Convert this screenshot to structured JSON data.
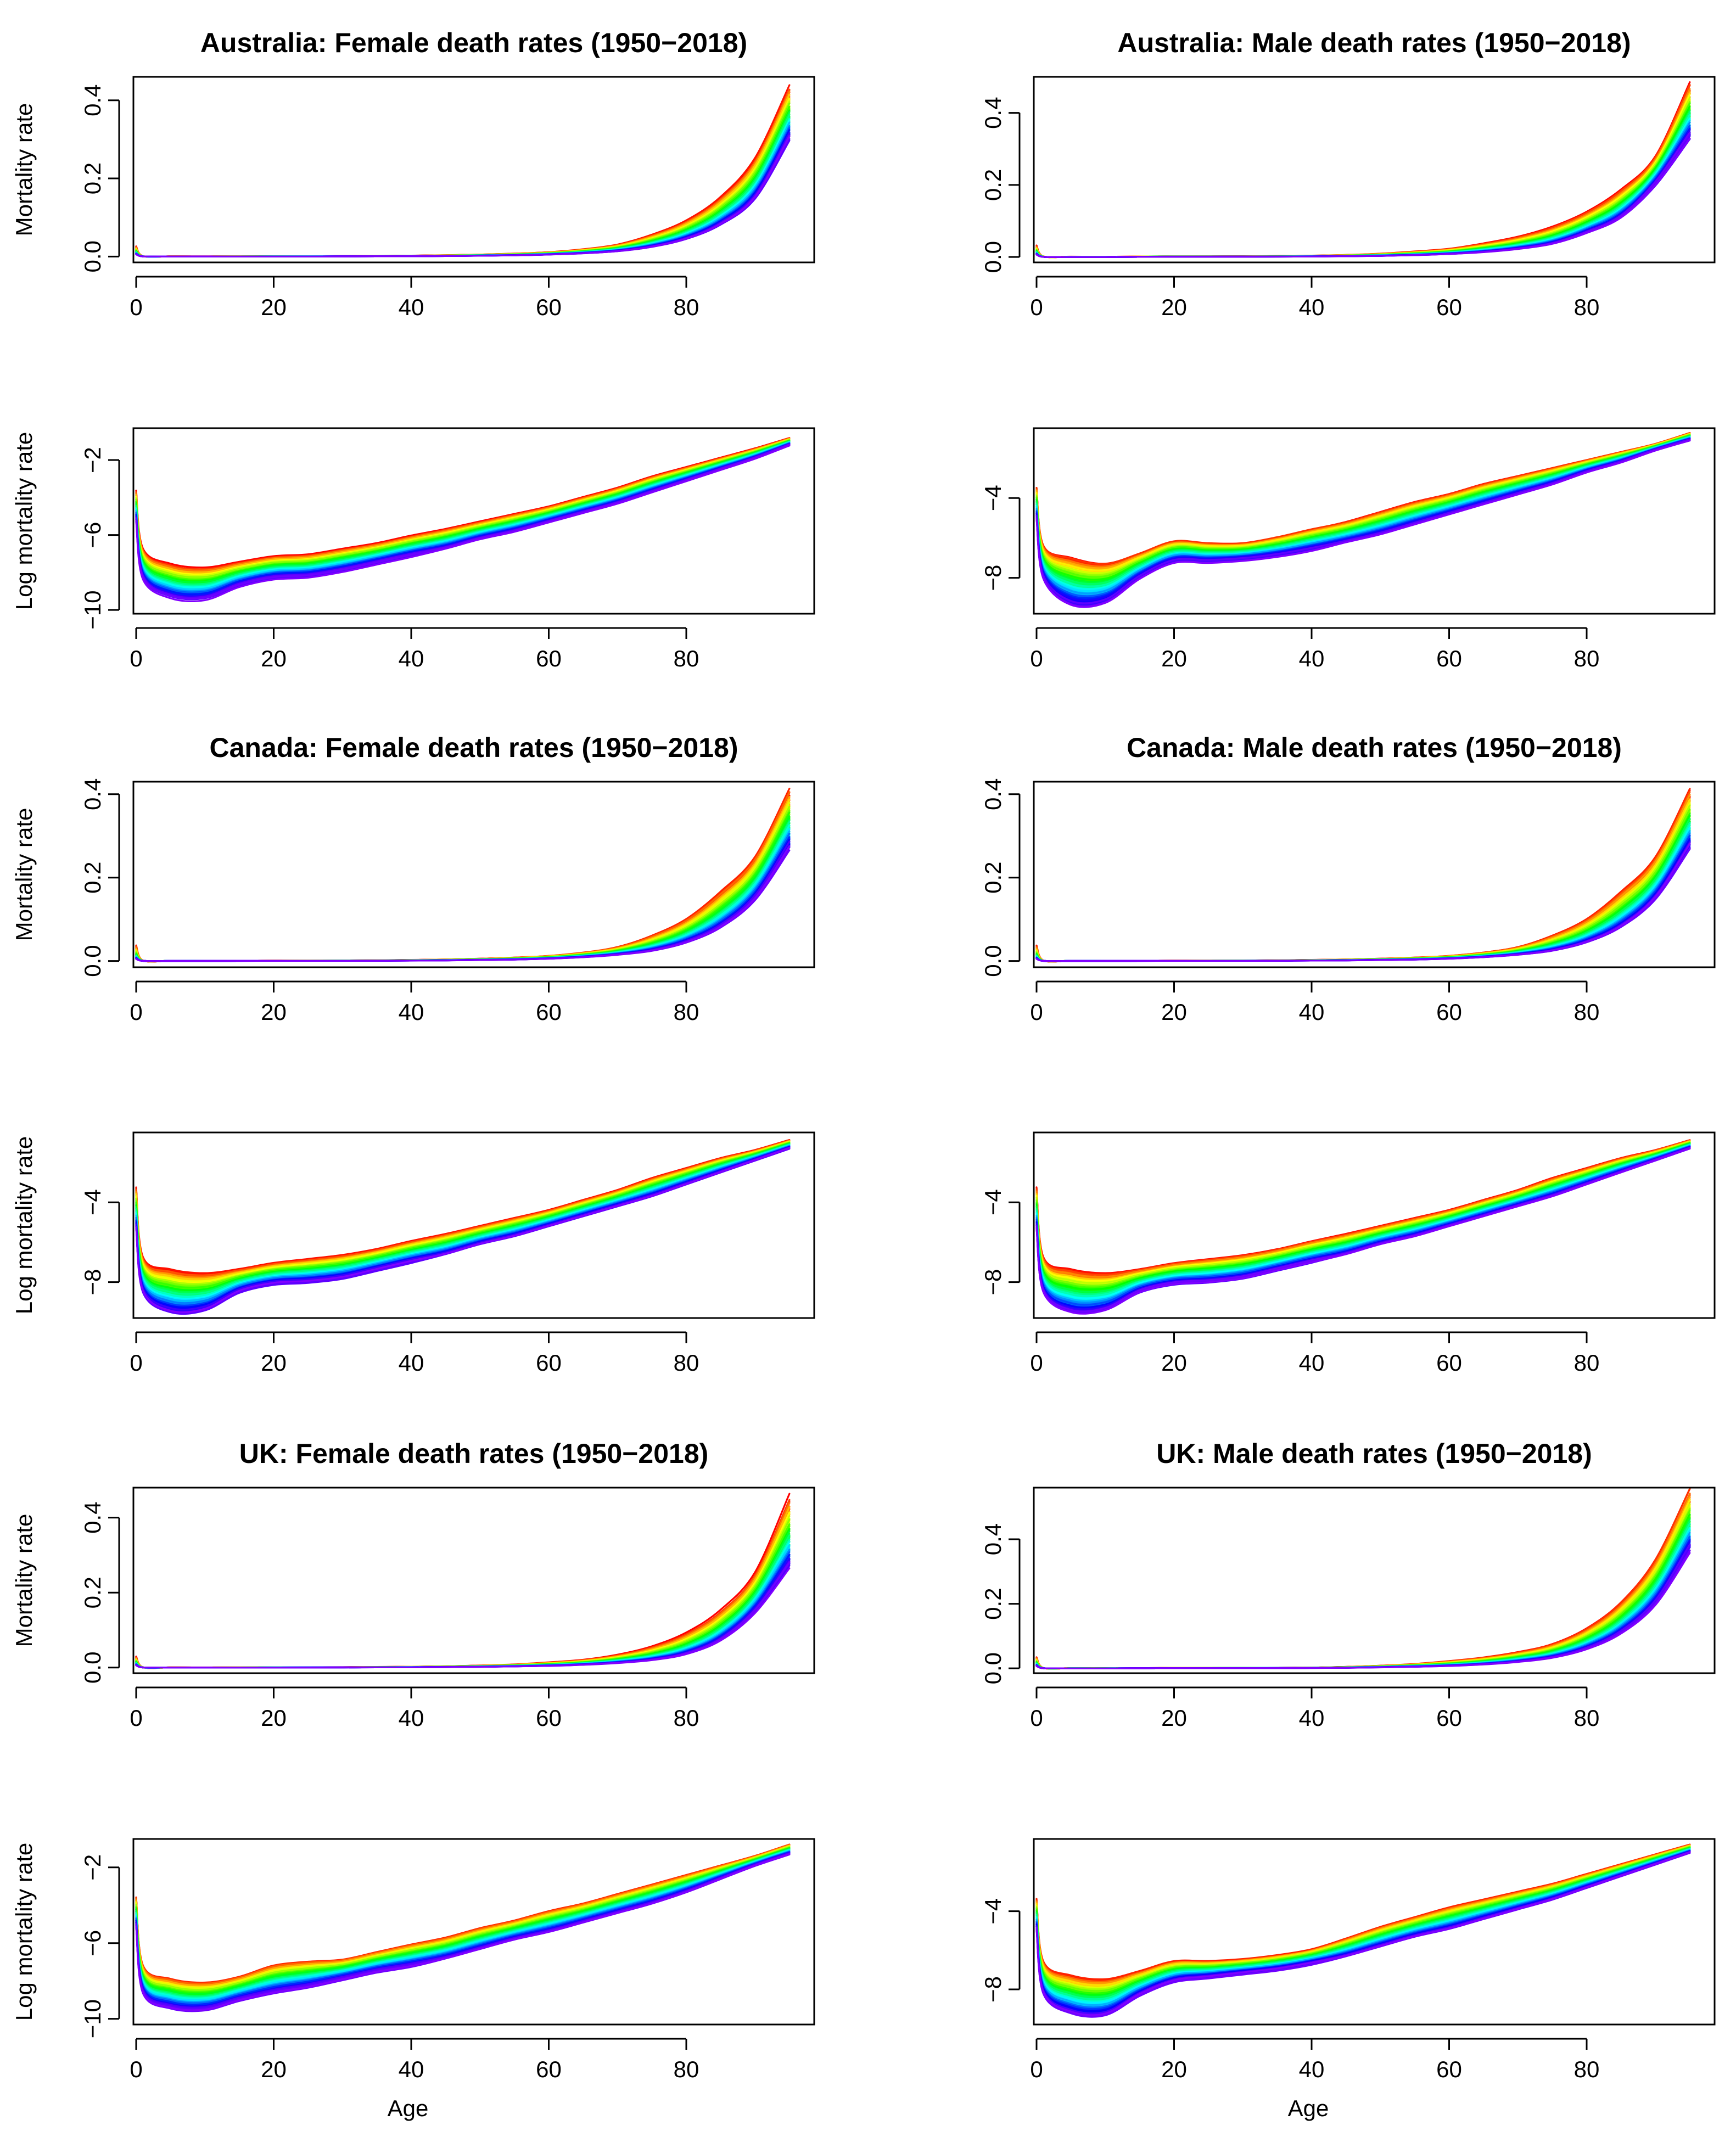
{
  "figure": {
    "x_axis_label": "Age"
  },
  "rainbow_colors": [
    "#ff0000",
    "#ff8000",
    "#ffff00",
    "#80ff00",
    "#00ff00",
    "#00ff80",
    "#00ffff",
    "#0080ff",
    "#0000ff",
    "#8000ff"
  ],
  "chart_data": [
    {
      "type": "line",
      "panel": "Australia Female mortality",
      "title": "Australia: Female death rates (1950−2018)",
      "xlabel": "",
      "ylabel": "Mortality rate",
      "xlim": [
        -3,
        98
      ],
      "ylim": [
        -0.015,
        0.46
      ],
      "xticks": [
        0,
        20,
        40,
        60,
        80
      ],
      "xtick_labels": [
        "0",
        "20",
        "40",
        "60",
        "80"
      ],
      "yticks": [
        0,
        0.2,
        0.4
      ],
      "ytick_labels": [
        "0.0",
        "0.2",
        "0.4"
      ],
      "series_count": 69,
      "years": [
        1950,
        2018
      ],
      "log_scale": false,
      "x": [
        0,
        1,
        5,
        10,
        15,
        20,
        25,
        30,
        35,
        40,
        45,
        50,
        55,
        60,
        65,
        70,
        75,
        80,
        85,
        90,
        95
      ],
      "log_rate_first_year": [
        -3.7,
        -6.8,
        -7.6,
        -7.8,
        -7.5,
        -7.2,
        -7.1,
        -6.8,
        -6.5,
        -6.1,
        -5.7,
        -5.3,
        -4.9,
        -4.5,
        -4.0,
        -3.5,
        -2.9,
        -2.4,
        -1.9,
        -1.4,
        -0.85
      ],
      "log_rate_last_year": [
        -5.2,
        -8.3,
        -9.3,
        -9.4,
        -8.7,
        -8.3,
        -8.2,
        -7.9,
        -7.5,
        -7.1,
        -6.7,
        -6.2,
        -5.8,
        -5.3,
        -4.8,
        -4.3,
        -3.7,
        -3.1,
        -2.5,
        -1.9,
        -1.2
      ]
    },
    {
      "type": "line",
      "panel": "Australia Male mortality",
      "title": "Australia: Male death rates (1950−2018)",
      "xlabel": "",
      "ylabel": "",
      "xlim": [
        -3,
        98
      ],
      "ylim": [
        -0.015,
        0.5
      ],
      "xticks": [
        0,
        20,
        40,
        60,
        80
      ],
      "xtick_labels": [
        "0",
        "20",
        "40",
        "60",
        "80"
      ],
      "yticks": [
        0,
        0.2,
        0.4
      ],
      "ytick_labels": [
        "0.0",
        "0.2",
        "0.4"
      ],
      "series_count": 69,
      "years": [
        1950,
        2018
      ],
      "log_scale": false,
      "x": [
        0,
        1,
        5,
        10,
        15,
        20,
        25,
        30,
        35,
        40,
        45,
        50,
        55,
        60,
        65,
        70,
        75,
        80,
        85,
        90,
        95
      ],
      "log_rate_first_year": [
        -3.5,
        -6.4,
        -7.0,
        -7.3,
        -6.8,
        -6.2,
        -6.3,
        -6.3,
        -6.0,
        -5.6,
        -5.2,
        -4.7,
        -4.2,
        -3.8,
        -3.3,
        -2.9,
        -2.5,
        -2.1,
        -1.7,
        -1.3,
        -0.75
      ],
      "log_rate_last_year": [
        -5.0,
        -8.0,
        -9.3,
        -9.2,
        -8.0,
        -7.2,
        -7.2,
        -7.1,
        -6.9,
        -6.6,
        -6.2,
        -5.8,
        -5.3,
        -4.8,
        -4.3,
        -3.8,
        -3.3,
        -2.7,
        -2.2,
        -1.6,
        -1.1
      ]
    },
    {
      "type": "line",
      "panel": "Australia Female log mortality",
      "title": "",
      "xlabel": "",
      "ylabel": "Log mortality rate",
      "xlim": [
        -3,
        98
      ],
      "ylim": [
        -10.2,
        -0.3
      ],
      "xticks": [
        0,
        20,
        40,
        60,
        80
      ],
      "xtick_labels": [
        "0",
        "20",
        "40",
        "60",
        "80"
      ],
      "yticks": [
        -10,
        -6,
        -2
      ],
      "ytick_labels": [
        "−10",
        "−6",
        "−2"
      ],
      "series_count": 69,
      "years": [
        1950,
        2018
      ],
      "log_scale": true,
      "x": [
        0,
        1,
        5,
        10,
        15,
        20,
        25,
        30,
        35,
        40,
        45,
        50,
        55,
        60,
        65,
        70,
        75,
        80,
        85,
        90,
        95
      ],
      "log_rate_first_year": [
        -3.7,
        -6.8,
        -7.6,
        -7.8,
        -7.5,
        -7.2,
        -7.1,
        -6.8,
        -6.5,
        -6.1,
        -5.7,
        -5.3,
        -4.9,
        -4.5,
        -4.0,
        -3.5,
        -2.9,
        -2.4,
        -1.9,
        -1.4,
        -0.85
      ],
      "log_rate_last_year": [
        -5.2,
        -8.3,
        -9.3,
        -9.4,
        -8.7,
        -8.3,
        -8.2,
        -7.9,
        -7.5,
        -7.1,
        -6.7,
        -6.2,
        -5.8,
        -5.3,
        -4.8,
        -4.3,
        -3.7,
        -3.1,
        -2.5,
        -1.9,
        -1.2
      ]
    },
    {
      "type": "line",
      "panel": "Australia Male log mortality",
      "title": "",
      "xlabel": "",
      "ylabel": "",
      "xlim": [
        -3,
        98
      ],
      "ylim": [
        -9.8,
        -0.5
      ],
      "xticks": [
        0,
        20,
        40,
        60,
        80
      ],
      "xtick_labels": [
        "0",
        "20",
        "40",
        "60",
        "80"
      ],
      "yticks": [
        -8,
        -4
      ],
      "ytick_labels": [
        "−8",
        "−4"
      ],
      "series_count": 69,
      "years": [
        1950,
        2018
      ],
      "log_scale": true,
      "x": [
        0,
        1,
        5,
        10,
        15,
        20,
        25,
        30,
        35,
        40,
        45,
        50,
        55,
        60,
        65,
        70,
        75,
        80,
        85,
        90,
        95
      ],
      "log_rate_first_year": [
        -3.5,
        -6.4,
        -7.0,
        -7.3,
        -6.8,
        -6.2,
        -6.3,
        -6.3,
        -6.0,
        -5.6,
        -5.2,
        -4.7,
        -4.2,
        -3.8,
        -3.3,
        -2.9,
        -2.5,
        -2.1,
        -1.7,
        -1.3,
        -0.75
      ],
      "log_rate_last_year": [
        -5.0,
        -8.0,
        -9.3,
        -9.2,
        -8.0,
        -7.2,
        -7.2,
        -7.1,
        -6.9,
        -6.6,
        -6.2,
        -5.8,
        -5.3,
        -4.8,
        -4.3,
        -3.8,
        -3.3,
        -2.7,
        -2.2,
        -1.6,
        -1.1
      ]
    },
    {
      "type": "line",
      "panel": "Canada Female mortality",
      "title": "Canada: Female death rates (1950−2018)",
      "xlabel": "",
      "ylabel": "Mortality rate",
      "xlim": [
        -3,
        98
      ],
      "ylim": [
        -0.015,
        0.43
      ],
      "xticks": [
        0,
        20,
        40,
        60,
        80
      ],
      "xtick_labels": [
        "0",
        "20",
        "40",
        "60",
        "80"
      ],
      "yticks": [
        0,
        0.2,
        0.4
      ],
      "ytick_labels": [
        "0.0",
        "0.2",
        "0.4"
      ],
      "series_count": 69,
      "years": [
        1950,
        2018
      ],
      "log_scale": false,
      "x": [
        0,
        1,
        5,
        10,
        15,
        20,
        25,
        30,
        35,
        40,
        45,
        50,
        55,
        60,
        65,
        70,
        75,
        80,
        85,
        90,
        95
      ],
      "log_rate_first_year": [
        -3.3,
        -6.8,
        -7.4,
        -7.6,
        -7.4,
        -7.1,
        -6.9,
        -6.7,
        -6.4,
        -6.0,
        -5.6,
        -5.2,
        -4.8,
        -4.4,
        -3.9,
        -3.4,
        -2.8,
        -2.3,
        -1.8,
        -1.4,
        -0.9
      ],
      "log_rate_last_year": [
        -5.3,
        -8.5,
        -9.5,
        -9.4,
        -8.5,
        -8.1,
        -8.0,
        -7.8,
        -7.4,
        -7.0,
        -6.6,
        -6.1,
        -5.7,
        -5.2,
        -4.7,
        -4.2,
        -3.7,
        -3.1,
        -2.5,
        -1.9,
        -1.3
      ]
    },
    {
      "type": "line",
      "panel": "Canada Male mortality",
      "title": "Canada: Male death rates (1950−2018)",
      "xlabel": "",
      "ylabel": "",
      "xlim": [
        -3,
        98
      ],
      "ylim": [
        -0.015,
        0.43
      ],
      "xticks": [
        0,
        20,
        40,
        60,
        80
      ],
      "xtick_labels": [
        "0",
        "20",
        "40",
        "60",
        "80"
      ],
      "yticks": [
        0,
        0.2,
        0.4
      ],
      "ytick_labels": [
        "0.0",
        "0.2",
        "0.4"
      ],
      "series_count": 69,
      "years": [
        1950,
        2018
      ],
      "log_scale": false,
      "x": [
        0,
        1,
        5,
        10,
        15,
        20,
        25,
        30,
        35,
        40,
        45,
        50,
        55,
        60,
        65,
        70,
        75,
        80,
        85,
        90,
        95
      ],
      "log_rate_first_year": [
        -3.3,
        -6.8,
        -7.4,
        -7.6,
        -7.4,
        -7.1,
        -6.9,
        -6.7,
        -6.4,
        -6.0,
        -5.6,
        -5.2,
        -4.8,
        -4.4,
        -3.9,
        -3.4,
        -2.8,
        -2.3,
        -1.8,
        -1.4,
        -0.9
      ],
      "log_rate_last_year": [
        -5.3,
        -8.5,
        -9.5,
        -9.4,
        -8.5,
        -8.1,
        -8.0,
        -7.8,
        -7.4,
        -7.0,
        -6.6,
        -6.1,
        -5.7,
        -5.2,
        -4.7,
        -4.2,
        -3.7,
        -3.1,
        -2.5,
        -1.9,
        -1.3
      ]
    },
    {
      "type": "line",
      "panel": "Canada Female log mortality",
      "title": "",
      "xlabel": "",
      "ylabel": "Log mortality rate",
      "xlim": [
        -3,
        98
      ],
      "ylim": [
        -9.8,
        -0.5
      ],
      "xticks": [
        0,
        20,
        40,
        60,
        80
      ],
      "xtick_labels": [
        "0",
        "20",
        "40",
        "60",
        "80"
      ],
      "yticks": [
        -8,
        -4
      ],
      "ytick_labels": [
        "−8",
        "−4"
      ],
      "series_count": 69,
      "years": [
        1950,
        2018
      ],
      "log_scale": true,
      "x": [
        0,
        1,
        5,
        10,
        15,
        20,
        25,
        30,
        35,
        40,
        45,
        50,
        55,
        60,
        65,
        70,
        75,
        80,
        85,
        90,
        95
      ],
      "log_rate_first_year": [
        -3.3,
        -6.8,
        -7.4,
        -7.6,
        -7.4,
        -7.1,
        -6.9,
        -6.7,
        -6.4,
        -6.0,
        -5.6,
        -5.2,
        -4.8,
        -4.4,
        -3.9,
        -3.4,
        -2.8,
        -2.3,
        -1.8,
        -1.4,
        -0.9
      ],
      "log_rate_last_year": [
        -5.3,
        -8.5,
        -9.5,
        -9.4,
        -8.5,
        -8.1,
        -8.0,
        -7.8,
        -7.4,
        -7.0,
        -6.6,
        -6.1,
        -5.7,
        -5.2,
        -4.7,
        -4.2,
        -3.7,
        -3.1,
        -2.5,
        -1.9,
        -1.3
      ]
    },
    {
      "type": "line",
      "panel": "Canada Male log mortality",
      "title": "",
      "xlabel": "",
      "ylabel": "",
      "xlim": [
        -3,
        98
      ],
      "ylim": [
        -9.8,
        -0.5
      ],
      "xticks": [
        0,
        20,
        40,
        60,
        80
      ],
      "xtick_labels": [
        "0",
        "20",
        "40",
        "60",
        "80"
      ],
      "yticks": [
        -8,
        -4
      ],
      "ytick_labels": [
        "−8",
        "−4"
      ],
      "series_count": 69,
      "years": [
        1950,
        2018
      ],
      "log_scale": true,
      "x": [
        0,
        1,
        5,
        10,
        15,
        20,
        25,
        30,
        35,
        40,
        45,
        50,
        55,
        60,
        65,
        70,
        75,
        80,
        85,
        90,
        95
      ],
      "log_rate_first_year": [
        -3.3,
        -6.8,
        -7.4,
        -7.6,
        -7.4,
        -7.1,
        -6.9,
        -6.7,
        -6.4,
        -6.0,
        -5.6,
        -5.2,
        -4.8,
        -4.4,
        -3.9,
        -3.4,
        -2.8,
        -2.3,
        -1.8,
        -1.4,
        -0.9
      ],
      "log_rate_last_year": [
        -5.3,
        -8.5,
        -9.5,
        -9.4,
        -8.5,
        -8.1,
        -8.0,
        -7.8,
        -7.4,
        -7.0,
        -6.6,
        -6.1,
        -5.7,
        -5.2,
        -4.7,
        -4.2,
        -3.7,
        -3.1,
        -2.5,
        -1.9,
        -1.3
      ]
    },
    {
      "type": "line",
      "panel": "UK Female mortality",
      "title": "UK: Female death rates (1950−2018)",
      "xlabel": "",
      "ylabel": "Mortality rate",
      "xlim": [
        -3,
        98
      ],
      "ylim": [
        -0.015,
        0.48
      ],
      "xticks": [
        0,
        20,
        40,
        60,
        80
      ],
      "xtick_labels": [
        "0",
        "20",
        "40",
        "60",
        "80"
      ],
      "yticks": [
        0,
        0.2,
        0.4
      ],
      "ytick_labels": [
        "0.0",
        "0.2",
        "0.4"
      ],
      "series_count": 69,
      "years": [
        1950,
        2018
      ],
      "log_scale": false,
      "x": [
        0,
        1,
        5,
        10,
        15,
        20,
        25,
        30,
        35,
        40,
        45,
        50,
        55,
        60,
        65,
        70,
        75,
        80,
        85,
        90,
        95
      ],
      "log_rate_first_year": [
        -3.6,
        -7.2,
        -7.9,
        -8.1,
        -7.8,
        -7.2,
        -7.0,
        -6.9,
        -6.5,
        -6.1,
        -5.7,
        -5.2,
        -4.8,
        -4.3,
        -3.9,
        -3.4,
        -2.9,
        -2.4,
        -1.9,
        -1.4,
        -0.8
      ],
      "log_rate_last_year": [
        -5.1,
        -8.6,
        -9.4,
        -9.5,
        -9.0,
        -8.6,
        -8.3,
        -7.9,
        -7.5,
        -7.2,
        -6.8,
        -6.3,
        -5.8,
        -5.4,
        -4.9,
        -4.4,
        -3.9,
        -3.3,
        -2.6,
        -1.9,
        -1.3
      ]
    },
    {
      "type": "line",
      "panel": "UK Male mortality",
      "title": "UK: Male death rates (1950−2018)",
      "xlabel": "",
      "ylabel": "",
      "xlim": [
        -3,
        98
      ],
      "ylim": [
        -0.015,
        0.56
      ],
      "xticks": [
        0,
        20,
        40,
        60,
        80
      ],
      "xtick_labels": [
        "0",
        "20",
        "40",
        "60",
        "80"
      ],
      "yticks": [
        0,
        0.2,
        0.4
      ],
      "ytick_labels": [
        "0.0",
        "0.2",
        "0.4"
      ],
      "series_count": 69,
      "years": [
        1950,
        2018
      ],
      "log_scale": false,
      "x": [
        0,
        1,
        5,
        10,
        15,
        20,
        25,
        30,
        35,
        40,
        45,
        50,
        55,
        60,
        65,
        70,
        75,
        80,
        85,
        90,
        95
      ],
      "log_rate_first_year": [
        -3.4,
        -6.6,
        -7.3,
        -7.5,
        -7.1,
        -6.6,
        -6.6,
        -6.5,
        -6.3,
        -6.0,
        -5.4,
        -4.8,
        -4.3,
        -3.8,
        -3.4,
        -3.0,
        -2.6,
        -2.1,
        -1.6,
        -1.1,
        -0.6
      ],
      "log_rate_last_year": [
        -4.9,
        -8.2,
        -9.2,
        -9.3,
        -8.3,
        -7.6,
        -7.4,
        -7.2,
        -7.0,
        -6.7,
        -6.3,
        -5.8,
        -5.3,
        -4.9,
        -4.4,
        -3.9,
        -3.4,
        -2.8,
        -2.2,
        -1.6,
        -1.0
      ]
    },
    {
      "type": "line",
      "panel": "UK Female log mortality",
      "title": "",
      "xlabel": "Age",
      "ylabel": "Log mortality rate",
      "xlim": [
        -3,
        98
      ],
      "ylim": [
        -10.3,
        -0.5
      ],
      "xticks": [
        0,
        20,
        40,
        60,
        80
      ],
      "xtick_labels": [
        "0",
        "20",
        "40",
        "60",
        "80"
      ],
      "yticks": [
        -10,
        -6,
        -2
      ],
      "ytick_labels": [
        "−10",
        "−6",
        "−2"
      ],
      "series_count": 69,
      "years": [
        1950,
        2018
      ],
      "log_scale": true,
      "x": [
        0,
        1,
        5,
        10,
        15,
        20,
        25,
        30,
        35,
        40,
        45,
        50,
        55,
        60,
        65,
        70,
        75,
        80,
        85,
        90,
        95
      ],
      "log_rate_first_year": [
        -3.6,
        -7.2,
        -7.9,
        -8.1,
        -7.8,
        -7.2,
        -7.0,
        -6.9,
        -6.5,
        -6.1,
        -5.7,
        -5.2,
        -4.8,
        -4.3,
        -3.9,
        -3.4,
        -2.9,
        -2.4,
        -1.9,
        -1.4,
        -0.8
      ],
      "log_rate_last_year": [
        -5.1,
        -8.6,
        -9.4,
        -9.5,
        -9.0,
        -8.6,
        -8.3,
        -7.9,
        -7.5,
        -7.2,
        -6.8,
        -6.3,
        -5.8,
        -5.4,
        -4.9,
        -4.4,
        -3.9,
        -3.3,
        -2.6,
        -1.9,
        -1.3
      ]
    },
    {
      "type": "line",
      "panel": "UK Male log mortality",
      "title": "",
      "xlabel": "Age",
      "ylabel": "",
      "xlim": [
        -3,
        98
      ],
      "ylim": [
        -9.8,
        -0.3
      ],
      "xticks": [
        0,
        20,
        40,
        60,
        80
      ],
      "xtick_labels": [
        "0",
        "20",
        "40",
        "60",
        "80"
      ],
      "yticks": [
        -8,
        -4
      ],
      "ytick_labels": [
        "−8",
        "−4"
      ],
      "series_count": 69,
      "years": [
        1950,
        2018
      ],
      "log_scale": true,
      "x": [
        0,
        1,
        5,
        10,
        15,
        20,
        25,
        30,
        35,
        40,
        45,
        50,
        55,
        60,
        65,
        70,
        75,
        80,
        85,
        90,
        95
      ],
      "log_rate_first_year": [
        -3.4,
        -6.6,
        -7.3,
        -7.5,
        -7.1,
        -6.6,
        -6.6,
        -6.5,
        -6.3,
        -6.0,
        -5.4,
        -4.8,
        -4.3,
        -3.8,
        -3.4,
        -3.0,
        -2.6,
        -2.1,
        -1.6,
        -1.1,
        -0.6
      ],
      "log_rate_last_year": [
        -4.9,
        -8.2,
        -9.2,
        -9.3,
        -8.3,
        -7.6,
        -7.4,
        -7.2,
        -7.0,
        -6.7,
        -6.3,
        -5.8,
        -5.3,
        -4.9,
        -4.4,
        -3.9,
        -3.4,
        -2.8,
        -2.2,
        -1.6,
        -1.0
      ]
    }
  ]
}
